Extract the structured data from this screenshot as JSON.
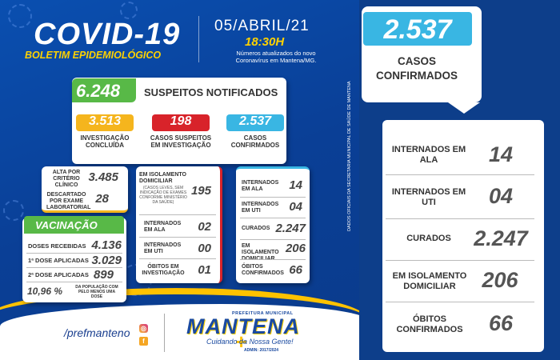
{
  "header": {
    "title": "COVID-19",
    "subtitle": "BOLETIM EPIDEMIOLÓGICO",
    "date": "05/ABRIL/21",
    "time": "18:30H",
    "note": "Números atualizados do novo Coronavírus em Mantena/MG."
  },
  "suspects": {
    "total": "6.248",
    "label": "SUSPEITOS NOTIFICADOS",
    "boxes": [
      {
        "value": "3.513",
        "label": "INVESTIGAÇÃO CONCLUÍDA",
        "color": "#f5b51d"
      },
      {
        "value": "198",
        "label": "CASOS SUSPEITOS EM INVESTIGAÇÃO",
        "color": "#d8232a"
      },
      {
        "value": "2.537",
        "label": "CASOS CONFIRMADOS",
        "color": "#39b6e3"
      }
    ]
  },
  "concluded": {
    "rows": [
      {
        "label": "ALTA POR CRITÉRIO CLÍNICO",
        "value": "3.485"
      },
      {
        "label": "DESCARTADO POR EXAME LABORATORIAL",
        "value": "28"
      }
    ]
  },
  "investigation": {
    "rows": [
      {
        "label": "EM ISOLAMENTO DOMICILIAR",
        "sub": "(CASOS LEVES, SEM INDICAÇÃO DE EXAMES CONFORME MINISTÉRIO DA SAÚDE)",
        "value": "195"
      },
      {
        "label": "INTERNADOS EM ALA",
        "value": "02"
      },
      {
        "label": "INTERNADOS EM UTI",
        "value": "00"
      },
      {
        "label": "ÓBITOS EM INVESTIGAÇÃO",
        "value": "01"
      }
    ]
  },
  "confirmed_small": {
    "rows": [
      {
        "label": "INTERNADOS EM ALA",
        "value": "14"
      },
      {
        "label": "INTERNADOS EM UTI",
        "value": "04"
      },
      {
        "label": "CURADOS",
        "value": "2.247"
      },
      {
        "label": "EM ISOLAMENTO DOMICILIAR",
        "value": "206"
      },
      {
        "label": "ÓBITOS CONFIRMADOS",
        "value": "66"
      }
    ]
  },
  "vaccination": {
    "title": "VACINAÇÃO",
    "rows": [
      {
        "label": "DOSES RECEBIDAS",
        "value": "4.136"
      },
      {
        "label": "1ª DOSE APLICADAS",
        "value": "3.029"
      },
      {
        "label": "2ª DOSE APLICADAS",
        "value": "899"
      }
    ],
    "percent": "10,96 %",
    "percent_label": "DA POPULAÇÃO COM PELO MENOS UMA DOSE"
  },
  "right_panel": {
    "total": "2.537",
    "label": "CASOS CONFIRMADOS",
    "vertical_text": "DADOS OFICIAIS DA SECRETARIA MUNICIPAL DE SAÚDE DE MANTENA",
    "rows": [
      {
        "label": "INTERNADOS EM ALA",
        "value": "14"
      },
      {
        "label": "INTERNADOS EM UTI",
        "value": "04"
      },
      {
        "label": "CURADOS",
        "value": "2.247"
      },
      {
        "label": "EM ISOLAMENTO DOMICILIAR",
        "value": "206"
      },
      {
        "label": "ÓBITOS CONFIRMADOS",
        "value": "66"
      }
    ]
  },
  "footer": {
    "handle": "/prefmanteno",
    "logo_top": "PREFEITURA MUNICIPAL",
    "logo": "MANTENA",
    "slogan": "Cuidando da Nossa Gente!",
    "admin": "ADMIN: 2017/2024",
    "icons": [
      "instagram-icon",
      "facebook-icon"
    ]
  }
}
